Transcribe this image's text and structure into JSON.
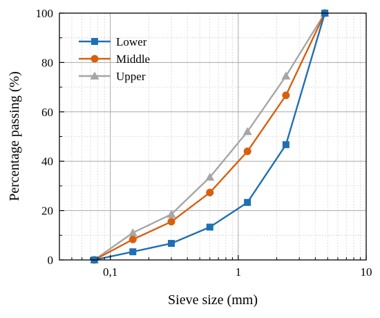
{
  "chart_data": {
    "type": "line",
    "title": "",
    "xlabel": "Sieve size (mm)",
    "ylabel": "Percentage passing (%)",
    "xscale": "log",
    "xlim": [
      0.04,
      10
    ],
    "ylim": [
      0,
      100
    ],
    "xticks": [
      {
        "value": 0.1,
        "label": "0,1"
      },
      {
        "value": 1,
        "label": "1"
      },
      {
        "value": 10,
        "label": "10"
      }
    ],
    "yticks": [
      {
        "value": 0,
        "label": "0"
      },
      {
        "value": 20,
        "label": "20"
      },
      {
        "value": 40,
        "label": "40"
      },
      {
        "value": 60,
        "label": "60"
      },
      {
        "value": 80,
        "label": "80"
      },
      {
        "value": 100,
        "label": "100"
      }
    ],
    "grid": true,
    "legend_position": "top-left",
    "x": [
      0.075,
      0.15,
      0.3,
      0.6,
      1.18,
      2.36,
      4.75
    ],
    "series": [
      {
        "name": "Lower",
        "color": "#1f6fb2",
        "marker": "square",
        "values": [
          0,
          3.3,
          6.7,
          13.3,
          23.3,
          46.7,
          100
        ]
      },
      {
        "name": "Middle",
        "color": "#d95f0e",
        "marker": "circle",
        "values": [
          0,
          8.3,
          15.5,
          27.3,
          44,
          66.7,
          100
        ]
      },
      {
        "name": "Upper",
        "color": "#a6a6a6",
        "marker": "triangle",
        "values": [
          0,
          11,
          18.5,
          33.5,
          52,
          74.5,
          100
        ]
      }
    ]
  }
}
